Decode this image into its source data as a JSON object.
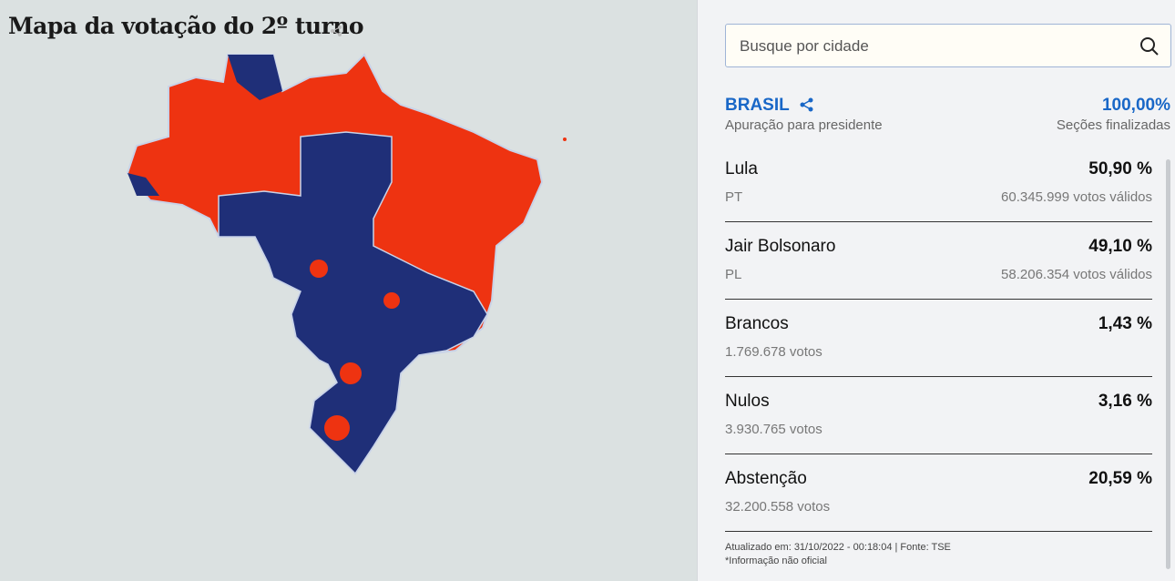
{
  "map": {
    "title": "Mapa da votação do 2º turno"
  },
  "search": {
    "placeholder": "Busque por cidade"
  },
  "summary": {
    "region": "BRASIL",
    "subtitle": "Apuração para presidente",
    "sections_percent": "100,00%",
    "sections_label": "Seções finalizadas"
  },
  "results": [
    {
      "name": "Lula",
      "percent": "50,90 %",
      "party": "PT",
      "votes": "60.345.999 votos válidos"
    },
    {
      "name": "Jair Bolsonaro",
      "percent": "49,10 %",
      "party": "PL",
      "votes": "58.206.354 votos válidos"
    },
    {
      "name": "Brancos",
      "percent": "1,43 %",
      "votes": "1.769.678 votos"
    },
    {
      "name": "Nulos",
      "percent": "3,16 %",
      "votes": "3.930.765 votos"
    },
    {
      "name": "Abstenção",
      "percent": "20,59 %",
      "votes": "32.200.558 votos"
    }
  ],
  "footer": [
    "Atualizado em: 31/10/2022 - 00:18:04 | Fonte: TSE",
    "*Informação não oficial"
  ]
}
